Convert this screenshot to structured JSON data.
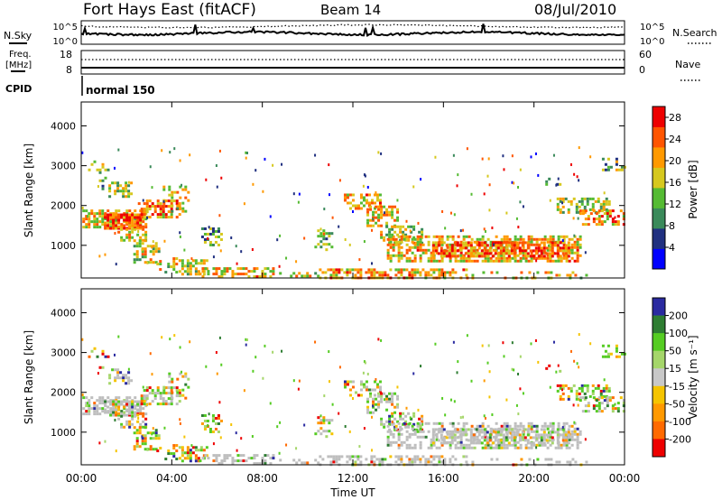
{
  "header": {
    "station": "Fort Hays East (fitACF)",
    "beam": "Beam 14",
    "date": "08/Jul/2010"
  },
  "status_panels": {
    "nsky_label": "N.Sky",
    "nsearch_label": "N.Search",
    "nsky_ticks": [
      "10^5",
      "10^0"
    ],
    "nsearch_ticks": [
      "10^5",
      "10^0"
    ],
    "freq_label": "Freq.",
    "freq_unit": "[MHz]",
    "freq_ticks": [
      "18",
      "8"
    ],
    "nave_label": "Nave",
    "nave_ticks": [
      "60",
      "0"
    ],
    "cpid_label": "CPID",
    "cpid_value": "normal 150"
  },
  "colors": {
    "power_scale": [
      "#0000ff",
      "#203080",
      "#3a8a5a",
      "#55bb33",
      "#d6c81e",
      "#ff9900",
      "#ff5500",
      "#ee0000"
    ],
    "velocity_scale": [
      "#2a2aa0",
      "#2e7d32",
      "#55cc22",
      "#a5d66a",
      "#c8c8c8",
      "#f5c400",
      "#ff9900",
      "#ff6a00",
      "#ee0000"
    ],
    "ground_scatter": "#bebebe"
  },
  "chart_data": [
    {
      "type": "heatmap",
      "panel": "power",
      "ylabel": "Slant Range [km]",
      "ylim": [
        180,
        4600
      ],
      "yticks": [
        "1000",
        "2000",
        "3000",
        "4000"
      ],
      "xlim_hours": [
        0,
        24
      ],
      "colorbar": {
        "label": "Power [dB]",
        "range": [
          0,
          30
        ],
        "ticks": [
          "4",
          "8",
          "12",
          "16",
          "20",
          "24",
          "28"
        ]
      }
    },
    {
      "type": "heatmap",
      "panel": "velocity",
      "ylabel": "Slant Range [km]",
      "ylim": [
        180,
        4600
      ],
      "yticks": [
        "1000",
        "2000",
        "3000",
        "4000"
      ],
      "xlim_hours": [
        0,
        24
      ],
      "xlabel": "Time UT",
      "xticks": [
        "00:00",
        "04:00",
        "08:00",
        "12:00",
        "16:00",
        "20:00",
        "00:00"
      ],
      "colorbar": {
        "label": "Velocity [m s⁻¹]",
        "ticks": [
          "200",
          "100",
          "50",
          "15",
          "-15",
          "-50",
          "-100",
          "-200"
        ]
      }
    }
  ]
}
